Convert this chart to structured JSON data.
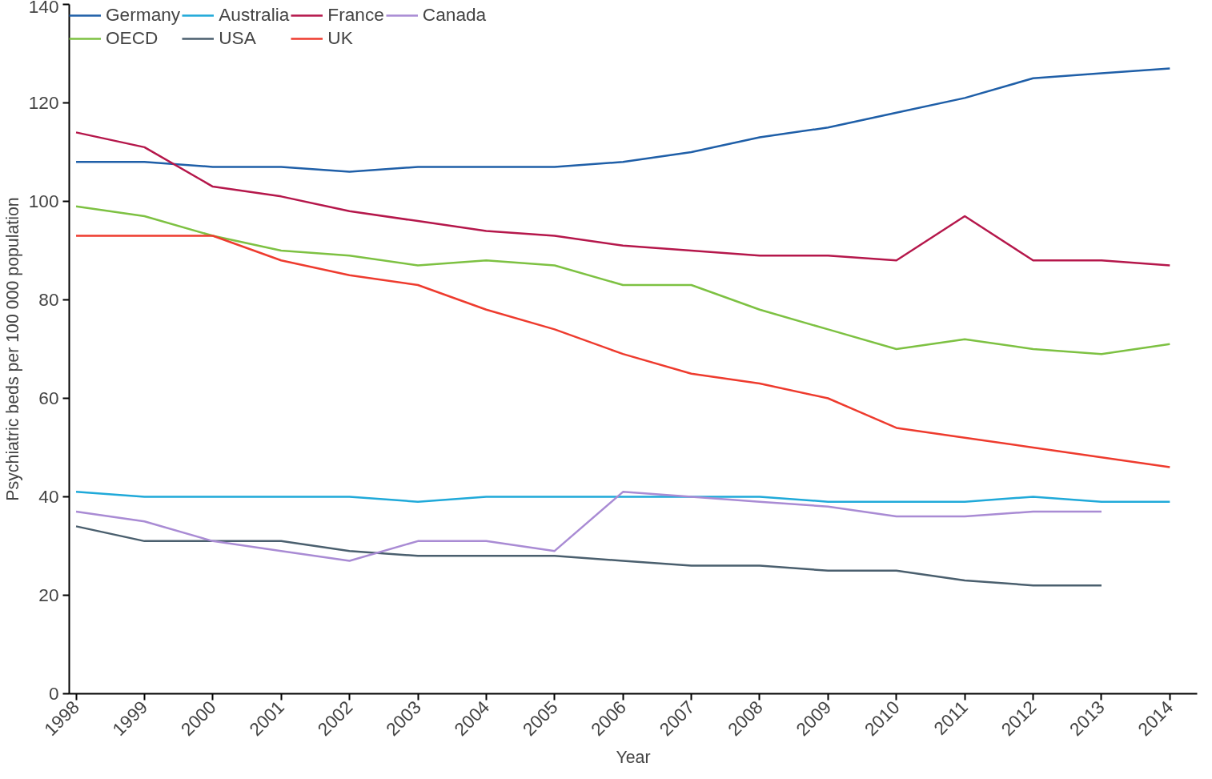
{
  "chart_data": {
    "type": "line",
    "xlabel": "Year",
    "ylabel": "Psychiatric beds per 100 000 population",
    "x": [
      1998,
      1999,
      2000,
      2001,
      2002,
      2003,
      2004,
      2005,
      2006,
      2007,
      2008,
      2009,
      2010,
      2011,
      2012,
      2013,
      2014
    ],
    "xlim": [
      1997.9,
      2014.4
    ],
    "xticks": [
      {
        "value": 1998,
        "label": "1998"
      },
      {
        "value": 1999,
        "label": "1999"
      },
      {
        "value": 2000,
        "label": "2000"
      },
      {
        "value": 2001,
        "label": "2001"
      },
      {
        "value": 2002,
        "label": "2002"
      },
      {
        "value": 2003,
        "label": "2003"
      },
      {
        "value": 2004,
        "label": "2004"
      },
      {
        "value": 2005,
        "label": "2005"
      },
      {
        "value": 2006,
        "label": "2006"
      },
      {
        "value": 2007,
        "label": "2007"
      },
      {
        "value": 2008,
        "label": "2008"
      },
      {
        "value": 2009,
        "label": "2009"
      },
      {
        "value": 2010,
        "label": "2010"
      },
      {
        "value": 2011,
        "label": "2011"
      },
      {
        "value": 2012,
        "label": "2012"
      },
      {
        "value": 2013,
        "label": "2013"
      },
      {
        "value": 2014,
        "label": "2014"
      }
    ],
    "ylim": [
      0,
      140
    ],
    "yticks": [
      0,
      20,
      40,
      60,
      80,
      100,
      120,
      140
    ],
    "grid": false,
    "legend": "top left",
    "marker": "none",
    "line_style": "solid",
    "series": [
      {
        "name": "Germany",
        "color": "#1f5fa8",
        "values": [
          108,
          108,
          107,
          107,
          106,
          107,
          107,
          107,
          108,
          110,
          113,
          115,
          118,
          121,
          125,
          126,
          127
        ]
      },
      {
        "name": "OECD",
        "color": "#7dc142",
        "values": [
          99,
          97,
          93,
          90,
          89,
          87,
          88,
          87,
          83,
          83,
          78,
          74,
          70,
          72,
          70,
          69,
          71
        ]
      },
      {
        "name": "Australia",
        "color": "#1fa9d9",
        "values": [
          41,
          40,
          40,
          40,
          40,
          39,
          40,
          40,
          40,
          40,
          40,
          39,
          39,
          39,
          40,
          39,
          39
        ]
      },
      {
        "name": "USA",
        "color": "#4a5f6e",
        "values": [
          34,
          31,
          31,
          31,
          29,
          28,
          28,
          28,
          27,
          26,
          26,
          25,
          25,
          23,
          22,
          22,
          null
        ]
      },
      {
        "name": "France",
        "color": "#b5174b",
        "values": [
          114,
          111,
          103,
          101,
          98,
          96,
          94,
          93,
          91,
          90,
          89,
          89,
          88,
          97,
          88,
          88,
          87
        ]
      },
      {
        "name": "UK",
        "color": "#ee3b2e",
        "values": [
          93,
          93,
          93,
          88,
          85,
          83,
          78,
          74,
          69,
          65,
          63,
          60,
          54,
          52,
          50,
          48,
          46
        ]
      },
      {
        "name": "Canada",
        "color": "#a98bd4",
        "values": [
          37,
          35,
          31,
          29,
          27,
          31,
          31,
          29,
          41,
          40,
          39,
          38,
          36,
          36,
          37,
          37,
          null
        ]
      }
    ]
  }
}
